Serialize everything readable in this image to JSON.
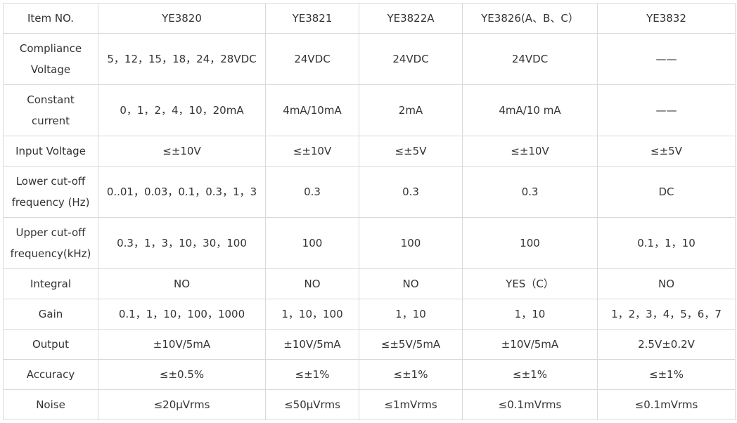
{
  "table": {
    "header": {
      "label": "Item  NO.",
      "cols": [
        "YE3820",
        "YE3821",
        "YE3822A",
        "YE3826(A、B、C）",
        "YE3832"
      ]
    },
    "rows": [
      {
        "label": "Compliance\nVoltage",
        "cells": [
          "5，12，15，18，24，28VDC",
          "24VDC",
          "24VDC",
          "24VDC",
          "——"
        ]
      },
      {
        "label": "Constant\ncurrent",
        "cells": [
          "0，1，2，4，10，20mA",
          "4mA/10mA",
          "2mA",
          "4mA/10 mA",
          "——"
        ]
      },
      {
        "label": "Input Voltage",
        "cells": [
          "≤±10V",
          "≤±10V",
          "≤±5V",
          "≤±10V",
          "≤±5V"
        ]
      },
      {
        "label": "Lower cut-off\nfrequency (Hz)",
        "cells": [
          "0..01，0.03，0.1，0.3，1，3",
          "0.3",
          "0.3",
          "0.3",
          "DC"
        ]
      },
      {
        "label": "Upper cut-off\nfrequency(kHz)",
        "cells": [
          "0.3，1，3，10，30，100",
          "100",
          "100",
          "100",
          "0.1，1，10"
        ]
      },
      {
        "label": "Integral",
        "cells": [
          "NO",
          "NO",
          "NO",
          "YES（C）",
          "NO"
        ]
      },
      {
        "label": "Gain",
        "cells": [
          "0.1，1，10，100，1000",
          "1，10，100",
          "1，10",
          "1，10",
          "1，2，3，4，5，6，7"
        ]
      },
      {
        "label": "Output",
        "cells": [
          "±10V/5mA",
          "±10V/5mA",
          "≤±5V/5mA",
          "±10V/5mA",
          "2.5V±0.2V"
        ]
      },
      {
        "label": "Accuracy",
        "cells": [
          "≤±0.5%",
          "≤±1%",
          "≤±1%",
          "≤±1%",
          "≤±1%"
        ]
      },
      {
        "label": "Noise",
        "cells": [
          "≤20μVrms",
          "≤50μVrms",
          "≤1mVrms",
          "≤0.1mVrms",
          "≤0.1mVrms"
        ]
      }
    ]
  }
}
